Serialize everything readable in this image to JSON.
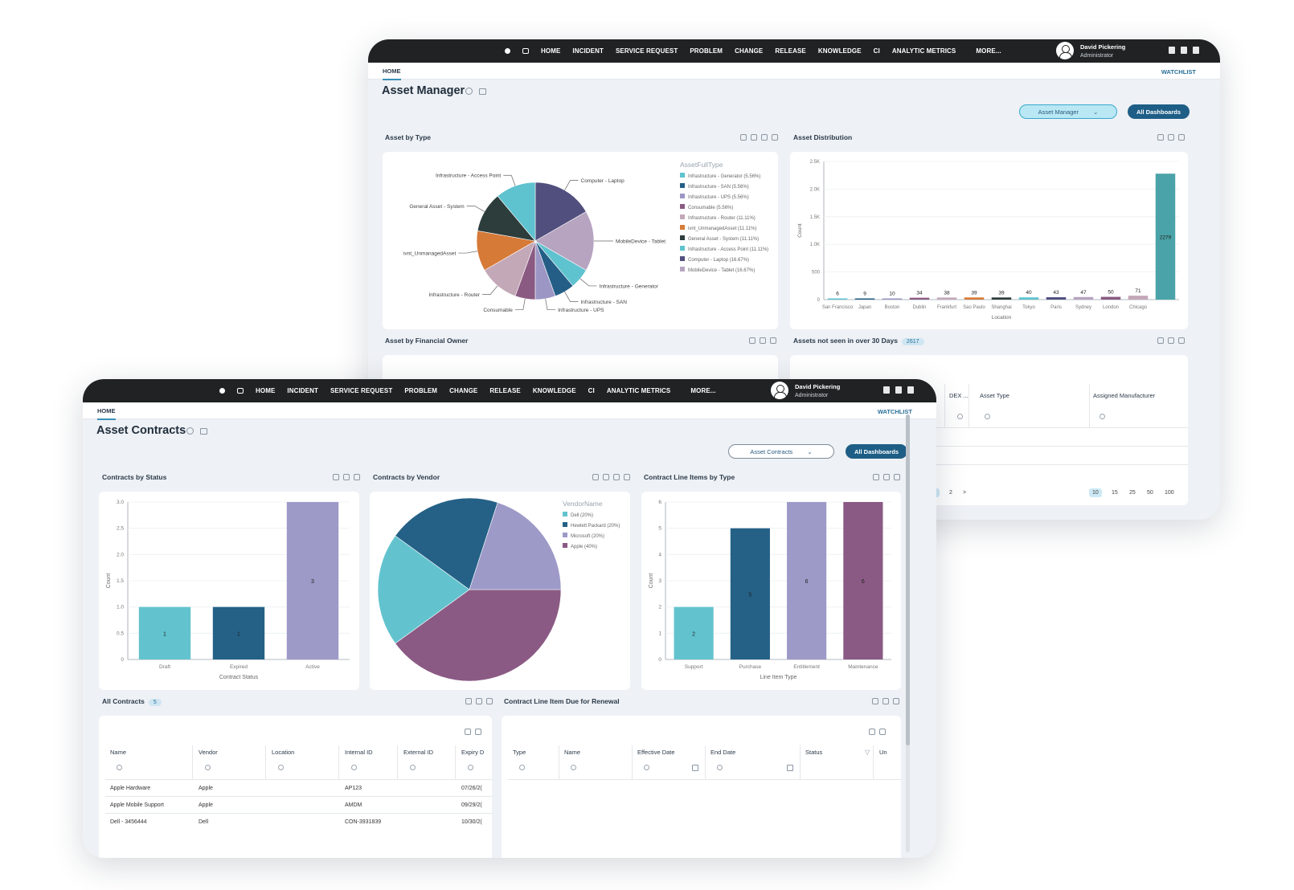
{
  "nav": {
    "items": [
      "HOME",
      "INCIDENT",
      "SERVICE REQUEST",
      "PROBLEM",
      "CHANGE",
      "RELEASE",
      "KNOWLEDGE",
      "CI",
      "ANALYTIC METRICS",
      "MORE..."
    ],
    "user_name": "David Pickering",
    "user_role": "Administrator",
    "home_tab": "HOME",
    "watchlist": "WATCHLIST"
  },
  "back": {
    "title": "Asset Manager",
    "dashboard_select": "Asset Manager",
    "all_dashboards": "All Dashboards",
    "panels": {
      "asset_by_type": "Asset by Type",
      "asset_distribution": "Asset Distribution",
      "asset_by_financial_owner": "Asset by Financial Owner",
      "assets_not_seen": "Assets not seen in over 30 Days",
      "assets_not_seen_count": "2617"
    },
    "grid_headers": [
      "DEX ...",
      "Asset Type",
      "Assigned Manufacturer"
    ],
    "pager": {
      "pages": [
        "1",
        "2",
        ">"
      ],
      "sizes": [
        "10",
        "15",
        "25",
        "50",
        "100"
      ],
      "fragment": "0)"
    }
  },
  "front": {
    "title": "Asset Contracts",
    "dashboard_select": "Asset Contracts",
    "all_dashboards": "All Dashboards",
    "panels": {
      "by_status": "Contracts by Status",
      "by_vendor": "Contracts by Vendor",
      "line_items": "Contract Line Items by Type",
      "all_contracts": "All Contracts",
      "all_contracts_count": "5",
      "renewal": "Contract Line Item Due for Renewal"
    },
    "all_contracts_headers": [
      "Name",
      "Vendor",
      "Location",
      "Internal ID",
      "External ID",
      "Expiry D"
    ],
    "all_contracts_rows": [
      [
        "Apple Hardware",
        "Apple",
        "",
        "AP123",
        "",
        "07/26/2("
      ],
      [
        "Apple Mobile Support",
        "Apple",
        "",
        "AMDM",
        "",
        "09/29/2("
      ],
      [
        "Dell - 3456444",
        "Dell",
        "",
        "CON-3931839",
        "",
        "10/30/2("
      ]
    ],
    "renewal_headers": [
      "Type",
      "Name",
      "Effective Date",
      "End Date",
      "Status",
      "Un"
    ]
  },
  "chart_data": [
    {
      "type": "pie",
      "title": "Asset by Type",
      "legend_title": "AssetFullType",
      "legend_placement": "right",
      "slices": [
        {
          "label": "Computer - Laptop",
          "legend": "Computer - Laptop (16.67%)",
          "value": 16.67,
          "color": "#514f7e"
        },
        {
          "label": "MobileDevice - Tablet",
          "legend": "MobileDevice - Tablet (16.67%)",
          "value": 16.67,
          "color": "#b6a4c0"
        },
        {
          "label": "Infrastructure - Generator",
          "legend": "Infrastructure - Generator (5.56%)",
          "value": 5.56,
          "color": "#5fc2cf"
        },
        {
          "label": "Infrastructure - SAN",
          "legend": "Infrastructure - SAN (5.56%)",
          "value": 5.56,
          "color": "#245e86"
        },
        {
          "label": "Infrastructure - UPS",
          "legend": "Infrastructure - UPS (5.56%)",
          "value": 5.56,
          "color": "#9b96c4"
        },
        {
          "label": "Consumable",
          "legend": "Consumable (5.56%)",
          "value": 5.56,
          "color": "#8a5a82"
        },
        {
          "label": "Infrastructure - Router",
          "legend": "Infrastructure - Router (11.11%)",
          "value": 11.11,
          "color": "#c3a8b8"
        },
        {
          "label": "ivnt_UnmanagedAsset",
          "legend": "ivnt_UnmanagedAsset (11.11%)",
          "value": 11.11,
          "color": "#d67a38"
        },
        {
          "label": "General Asset - System",
          "legend": "General Asset - System (11.11%)",
          "value": 11.11,
          "color": "#2d3d3c"
        },
        {
          "label": "Infrastructure - Access Point",
          "legend": "Infrastructure - Access Point (11.11%)",
          "value": 11.11,
          "color": "#5fc2cf"
        }
      ],
      "legend_order": [
        2,
        3,
        4,
        5,
        6,
        7,
        8,
        9,
        0,
        1
      ]
    },
    {
      "type": "bar",
      "title": "Asset Distribution",
      "xlabel": "Location",
      "ylabel": "Count",
      "ylim": [
        0,
        2500
      ],
      "yticks": [
        "0",
        "500",
        "1.0K",
        "1.5K",
        "2.0K",
        "2.5K"
      ],
      "categories": [
        "San Francisco",
        "Japan",
        "Boston",
        "Dublin",
        "Frankfurt",
        "Sao Paulo",
        "Shanghai",
        "Tokyo",
        "Paris",
        "Sydney",
        "London",
        "Chicago",
        ""
      ],
      "values": [
        6,
        9,
        10,
        34,
        38,
        39,
        39,
        40,
        43,
        47,
        50,
        71,
        2279
      ],
      "colors": [
        "#5fc2cf",
        "#245e86",
        "#9b96c4",
        "#8a5a82",
        "#c3a8b8",
        "#d67a38",
        "#2d3d3c",
        "#5fc2cf",
        "#514f7e",
        "#b6a4c0",
        "#8a5a82",
        "#c3a8b8",
        "#4aa3a8"
      ]
    },
    {
      "type": "bar",
      "title": "Contracts by Status",
      "xlabel": "Contract Status",
      "ylabel": "Count",
      "ylim": [
        0,
        3
      ],
      "yticks": [
        "0",
        "0.5",
        "1.0",
        "1.5",
        "2.0",
        "2.5",
        "3.0"
      ],
      "categories": [
        "Draft",
        "Expired",
        "Active"
      ],
      "values": [
        1,
        1,
        3
      ],
      "colors": [
        "#62c3ce",
        "#256187",
        "#9d9ac8"
      ]
    },
    {
      "type": "pie",
      "title": "Contracts by Vendor",
      "legend_title": "VendorName",
      "legend_placement": "right",
      "slices": [
        {
          "label": "Apple",
          "legend": "Apple (40%)",
          "value": 40,
          "color": "#8a5a84"
        },
        {
          "label": "Dell",
          "legend": "Dell (20%)",
          "value": 20,
          "color": "#62c3ce"
        },
        {
          "label": "Hewlett Packard",
          "legend": "Hewlett Packard (20%)",
          "value": 20,
          "color": "#256187"
        },
        {
          "label": "Microsoft",
          "legend": "Microsoft (20%)",
          "value": 20,
          "color": "#9d9ac8"
        }
      ],
      "legend_order": [
        1,
        2,
        3,
        0
      ]
    },
    {
      "type": "bar",
      "title": "Contract Line Items by Type",
      "xlabel": "Line Item Type",
      "ylabel": "Count",
      "ylim": [
        0,
        6
      ],
      "yticks": [
        "0",
        "1",
        "2",
        "3",
        "4",
        "5",
        "6"
      ],
      "categories": [
        "Support",
        "Purchase",
        "Entitlement",
        "Maintenance"
      ],
      "values": [
        2,
        5,
        6,
        6
      ],
      "colors": [
        "#62c3ce",
        "#256187",
        "#9d9ac8",
        "#8a5a84"
      ]
    }
  ]
}
